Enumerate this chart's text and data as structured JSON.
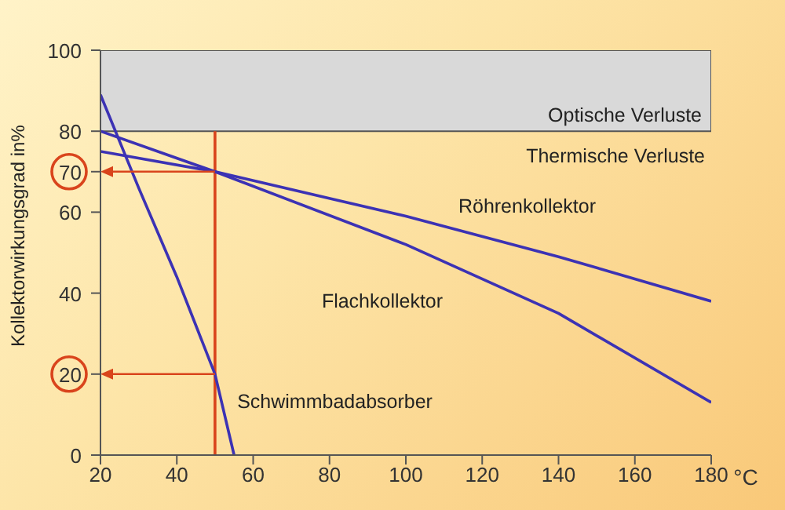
{
  "chart_data": {
    "type": "line",
    "xlabel": "°C",
    "ylabel": "Kollektorwirkungsgrad in%",
    "xlim": [
      20,
      180
    ],
    "xticks": [
      20,
      40,
      60,
      80,
      100,
      120,
      140,
      160,
      180
    ],
    "ylim": [
      0,
      100
    ],
    "yticks": [
      0,
      20,
      40,
      60,
      70,
      80,
      100
    ],
    "series": [
      {
        "name": "Röhrenkollektor",
        "color": "#3c32b4",
        "x": [
          20,
          50,
          100,
          140,
          180
        ],
        "values": [
          75,
          70,
          59,
          49,
          38
        ]
      },
      {
        "name": "Flachkollektor",
        "color": "#3c32b4",
        "x": [
          20,
          50,
          100,
          140,
          180
        ],
        "values": [
          80,
          70,
          52,
          35,
          13
        ]
      },
      {
        "name": "Schwimmbadabsorber",
        "color": "#3c32b4",
        "x": [
          20,
          30,
          40,
          50,
          55
        ],
        "values": [
          89,
          66,
          44,
          20,
          0
        ]
      }
    ],
    "bands": [
      {
        "axis": "y",
        "from": 80,
        "to": 100,
        "label": "Optische Verluste",
        "color": "#d9d9d9"
      }
    ],
    "ref_lines": [
      {
        "axis": "x",
        "value": 50,
        "color": "#d9441c"
      },
      {
        "axis": "y",
        "value": 70,
        "color": "#d9441c"
      },
      {
        "axis": "y",
        "value": 20,
        "color": "#d9441c"
      }
    ],
    "annotations": [
      "Thermische Verluste"
    ],
    "marker": "none",
    "line_style": "solid"
  }
}
